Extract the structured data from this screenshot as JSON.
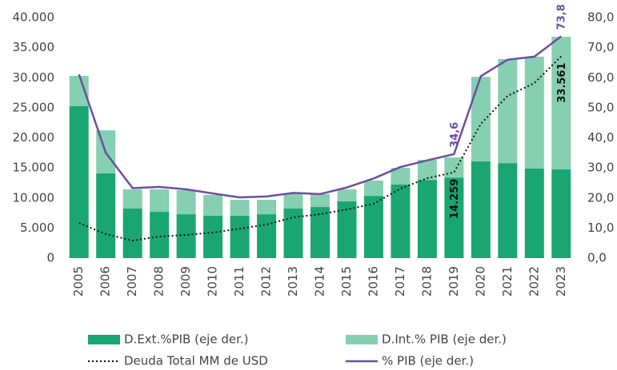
{
  "chart_data": {
    "type": "bar",
    "categories": [
      "2005",
      "2006",
      "2007",
      "2008",
      "2009",
      "2010",
      "2011",
      "2012",
      "2013",
      "2014",
      "2015",
      "2016",
      "2017",
      "2018",
      "2019",
      "2020",
      "2021",
      "2022",
      "2023"
    ],
    "series": [
      {
        "name": "D.Ext.%PIB (eje der.)",
        "type": "bar",
        "axis": "y2",
        "color": "#1aa672",
        "values": [
          50.5,
          28.2,
          16.5,
          15.4,
          14.6,
          14.1,
          14.1,
          14.6,
          16.5,
          17.0,
          18.9,
          20.7,
          24.5,
          26.0,
          26.8,
          32.2,
          31.6,
          29.8,
          29.5
        ]
      },
      {
        "name": "D.Int.% PIB (eje der.)",
        "type": "bar",
        "axis": "y2",
        "color": "#86cfb1",
        "values": [
          10.1,
          14.3,
          6.4,
          7.5,
          8.0,
          6.9,
          5.3,
          4.8,
          5.0,
          4.3,
          4.0,
          5.1,
          5.5,
          6.7,
          6.7,
          28.1,
          34.6,
          37.2,
          44.1
        ]
      },
      {
        "name": "Deuda Total MM de USD",
        "type": "line",
        "axis": "y",
        "color": "#111111",
        "dash": "dotted",
        "values": [
          5850,
          4000,
          2920,
          3590,
          3850,
          4250,
          4900,
          5580,
          6780,
          7300,
          8100,
          9040,
          11560,
          13290,
          14259,
          22330,
          26980,
          29100,
          33561
        ],
        "value_labels": [
          null,
          null,
          null,
          null,
          null,
          null,
          null,
          null,
          null,
          null,
          null,
          null,
          null,
          null,
          "14.259",
          null,
          null,
          null,
          "33.561"
        ]
      },
      {
        "name": "% PIB (eje der.)",
        "type": "line",
        "axis": "y2",
        "color": "#6b4fa0",
        "values": [
          61.1,
          35.0,
          23.3,
          23.7,
          22.9,
          21.5,
          20.2,
          20.5,
          21.7,
          21.3,
          23.5,
          26.5,
          30.3,
          32.5,
          34.6,
          60.5,
          66.0,
          67.0,
          73.8
        ],
        "value_labels": [
          null,
          null,
          null,
          null,
          null,
          null,
          null,
          null,
          null,
          null,
          null,
          null,
          null,
          null,
          "34,6",
          null,
          null,
          null,
          "73,8"
        ]
      }
    ],
    "ylim": [
      0,
      40000
    ],
    "yticks": [
      0,
      {
        "value": 5000,
        "label": "5.000"
      },
      {
        "value": 10000,
        "label": "10.000"
      },
      {
        "value": 15000,
        "label": "15.000"
      },
      {
        "value": 20000,
        "label": "20.000"
      },
      {
        "value": 25000,
        "label": "25.000"
      },
      {
        "value": 30000,
        "label": "30.000"
      },
      {
        "value": 35000,
        "label": "35.000"
      },
      {
        "value": 40000,
        "label": "40.000"
      }
    ],
    "y2lim": [
      0,
      80
    ],
    "y2ticks": [
      {
        "value": 0,
        "label": "0,0"
      },
      {
        "value": 10,
        "label": "10,0"
      },
      {
        "value": 20,
        "label": "20,0"
      },
      {
        "value": 30,
        "label": "30,0"
      },
      {
        "value": 40,
        "label": "40,0"
      },
      {
        "value": 50,
        "label": "50,0"
      },
      {
        "value": 60,
        "label": "60,0"
      },
      {
        "value": 70,
        "label": "70,0"
      },
      {
        "value": 80,
        "label": "80,0"
      }
    ],
    "grid": false,
    "legend": "bottom"
  }
}
